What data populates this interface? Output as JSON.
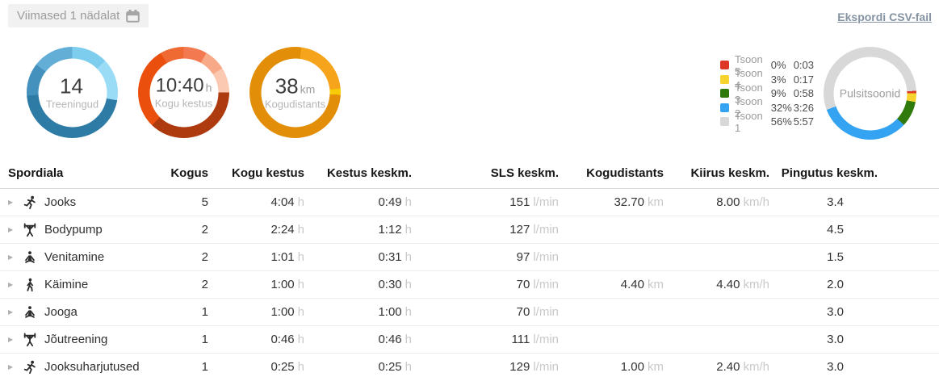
{
  "header": {
    "filter_label": "Viimased 1 nädalat",
    "export_label": "Ekspordi CSV-fail"
  },
  "summary_donuts": [
    {
      "key": "treeningud",
      "value": "14",
      "unit": "",
      "label": "Treeningud",
      "segments": [
        {
          "color": "#7dcdee",
          "from": 0,
          "to": 46
        },
        {
          "color": "#9adcf5",
          "from": 46,
          "to": 100
        },
        {
          "color": "#2e7ca6",
          "from": 100,
          "to": 266
        },
        {
          "color": "#4391bc",
          "from": 266,
          "to": 308
        },
        {
          "color": "#63aed7",
          "from": 308,
          "to": 360
        }
      ]
    },
    {
      "key": "kogu-kestus",
      "value": "10:40",
      "unit": "h",
      "label": "Kogu kestus",
      "segments": [
        {
          "color": "#f37a50",
          "from": 0,
          "to": 30
        },
        {
          "color": "#f8a987",
          "from": 30,
          "to": 58
        },
        {
          "color": "#fbc9b2",
          "from": 58,
          "to": 90
        },
        {
          "color": "#ae3b10",
          "from": 90,
          "to": 224
        },
        {
          "color": "#eb4f0d",
          "from": 224,
          "to": 330
        },
        {
          "color": "#ef6a33",
          "from": 330,
          "to": 360
        }
      ]
    },
    {
      "key": "kogudistants",
      "value": "38",
      "unit": "km",
      "label": "Kogudistants",
      "segments": [
        {
          "color": "#e28e08",
          "from": 0,
          "to": 8
        },
        {
          "color": "#f5a41c",
          "from": 8,
          "to": 85
        },
        {
          "color": "#f7cb05",
          "from": 85,
          "to": 93
        },
        {
          "color": "#e28e08",
          "from": 93,
          "to": 360
        }
      ]
    }
  ],
  "pulse": {
    "label": "Pulsitsoonid",
    "zones": [
      {
        "label": "Tsoon 5",
        "pct": "0%",
        "time": "0:03",
        "color": "#dd3826"
      },
      {
        "label": "Tsoon 4",
        "pct": "3%",
        "time": "0:17",
        "color": "#f7d32f"
      },
      {
        "label": "Tsoon 3",
        "pct": "9%",
        "time": "0:58",
        "color": "#2f7a0a"
      },
      {
        "label": "Tsoon 2",
        "pct": "32%",
        "time": "3:26",
        "color": "#33a3f2"
      },
      {
        "label": "Tsoon 1",
        "pct": "56%",
        "time": "5:57",
        "color": "#d8d8d8"
      }
    ],
    "segments": [
      {
        "color": "#d8d8d8",
        "from": 0,
        "to": 87
      },
      {
        "color": "#dd3826",
        "from": 87,
        "to": 90
      },
      {
        "color": "#f7d32f",
        "from": 90,
        "to": 101
      },
      {
        "color": "#2f7a0a",
        "from": 101,
        "to": 133
      },
      {
        "color": "#33a3f2",
        "from": 133,
        "to": 249
      },
      {
        "color": "#d8d8d8",
        "from": 249,
        "to": 360
      }
    ]
  },
  "table": {
    "columns": [
      "Spordiala",
      "Kogus",
      "Kogu kestus",
      "Kestus keskm.",
      "SLS keskm.",
      "Kogudistants",
      "Kiirus keskm.",
      "Pingutus keskm."
    ],
    "rows": [
      {
        "icon": "runner-icon",
        "name": "Jooks",
        "cells": [
          {
            "v": "5"
          },
          {
            "v": "4:04",
            "u": "h"
          },
          {
            "v": "0:49",
            "u": "h"
          },
          {
            "v": "151",
            "u": "l/min"
          },
          {
            "v": "32.70",
            "u": "km"
          },
          {
            "v": "8.00",
            "u": "km/h"
          },
          {
            "v": "3.4"
          }
        ]
      },
      {
        "icon": "weightlifter-icon",
        "name": "Bodypump",
        "cells": [
          {
            "v": "2"
          },
          {
            "v": "2:24",
            "u": "h"
          },
          {
            "v": "1:12",
            "u": "h"
          },
          {
            "v": "127",
            "u": "l/min"
          },
          {
            "v": ""
          },
          {
            "v": ""
          },
          {
            "v": "4.5"
          }
        ]
      },
      {
        "icon": "stretching-icon",
        "name": "Venitamine",
        "cells": [
          {
            "v": "2"
          },
          {
            "v": "1:01",
            "u": "h"
          },
          {
            "v": "0:31",
            "u": "h"
          },
          {
            "v": "97",
            "u": "l/min"
          },
          {
            "v": ""
          },
          {
            "v": ""
          },
          {
            "v": "1.5"
          }
        ]
      },
      {
        "icon": "walking-icon",
        "name": "Käimine",
        "cells": [
          {
            "v": "2"
          },
          {
            "v": "1:00",
            "u": "h"
          },
          {
            "v": "0:30",
            "u": "h"
          },
          {
            "v": "70",
            "u": "l/min"
          },
          {
            "v": "4.40",
            "u": "km"
          },
          {
            "v": "4.40",
            "u": "km/h"
          },
          {
            "v": "2.0"
          }
        ]
      },
      {
        "icon": "yoga-icon",
        "name": "Jooga",
        "cells": [
          {
            "v": "1"
          },
          {
            "v": "1:00",
            "u": "h"
          },
          {
            "v": "1:00",
            "u": "h"
          },
          {
            "v": "70",
            "u": "l/min"
          },
          {
            "v": ""
          },
          {
            "v": ""
          },
          {
            "v": "3.0"
          }
        ]
      },
      {
        "icon": "strength-icon",
        "name": "Jõutreening",
        "cells": [
          {
            "v": "1"
          },
          {
            "v": "0:46",
            "u": "h"
          },
          {
            "v": "0:46",
            "u": "h"
          },
          {
            "v": "111",
            "u": "l/min"
          },
          {
            "v": ""
          },
          {
            "v": ""
          },
          {
            "v": "3.0"
          }
        ]
      },
      {
        "icon": "running-drills-icon",
        "name": "Jooksuharjutused",
        "cells": [
          {
            "v": "1"
          },
          {
            "v": "0:25",
            "u": "h"
          },
          {
            "v": "0:25",
            "u": "h"
          },
          {
            "v": "129",
            "u": "l/min"
          },
          {
            "v": "1.00",
            "u": "km"
          },
          {
            "v": "2.40",
            "u": "km/h"
          },
          {
            "v": "3.0"
          }
        ]
      }
    ]
  }
}
